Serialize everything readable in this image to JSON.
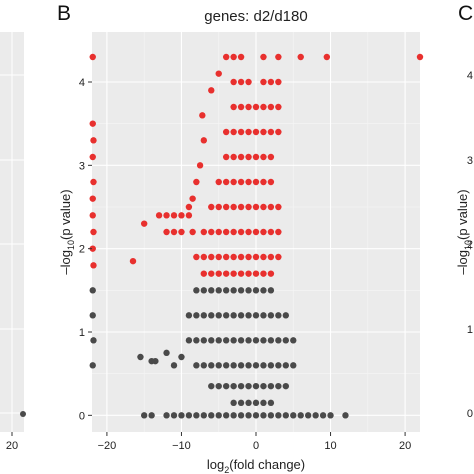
{
  "chart_data": [
    {
      "panel": "A",
      "type": "scatter",
      "x_tick_labels": [
        "20"
      ],
      "y_tick_labels": [],
      "partial": true
    },
    {
      "panel": "B",
      "panel_label": "B",
      "type": "scatter",
      "title": "genes: d2/d180",
      "xlabel_base": "log",
      "xlabel_sub": "2",
      "xlabel_rest": "(fold change)",
      "ylabel_pre": "–log",
      "ylabel_sub": "10",
      "ylabel_rest": "(p value)",
      "xlim": [
        -22,
        22
      ],
      "ylim": [
        -0.2,
        4.6
      ],
      "x_ticks": [
        -20,
        -10,
        0,
        10,
        20
      ],
      "x_tick_labels": [
        "−20",
        "−10",
        "0",
        "10",
        "20"
      ],
      "y_ticks": [
        0,
        1,
        2,
        3,
        4
      ],
      "y_tick_labels": [
        "0",
        "1",
        "2",
        "3",
        "4"
      ],
      "grid": true,
      "background": "#ebebeb",
      "significance_threshold_y": 1.6,
      "colors": {
        "significant": "#e8302e",
        "not_significant": "#4a4a4a"
      },
      "series": [
        {
          "color": "#e8302e",
          "points": [
            [
              -21.9,
              4.3
            ],
            [
              -21.9,
              3.5
            ],
            [
              -21.8,
              3.3
            ],
            [
              -21.9,
              3.1
            ],
            [
              -21.8,
              2.8
            ],
            [
              -21.9,
              2.6
            ],
            [
              -21.9,
              2.4
            ],
            [
              -21.8,
              2.2
            ],
            [
              -21.9,
              2.0
            ],
            [
              -21.8,
              1.8
            ],
            [
              -16.5,
              1.85
            ],
            [
              -15.0,
              2.3
            ],
            [
              -13.0,
              2.4
            ],
            [
              -12.0,
              2.4
            ],
            [
              -11.0,
              2.4
            ],
            [
              -10.0,
              2.4
            ],
            [
              -9.0,
              2.4
            ],
            [
              -12.0,
              2.2
            ],
            [
              -11.0,
              2.2
            ],
            [
              -10.0,
              2.2
            ],
            [
              -8.5,
              2.2
            ],
            [
              -9.0,
              2.5
            ],
            [
              -8.5,
              2.6
            ],
            [
              -8.0,
              2.8
            ],
            [
              -7.5,
              3.0
            ],
            [
              -7.0,
              3.3
            ],
            [
              -7.2,
              3.6
            ],
            [
              -6.0,
              3.9
            ],
            [
              -5.0,
              4.1
            ],
            [
              -4.0,
              4.3
            ],
            [
              -3.0,
              4.3
            ],
            [
              -2.0,
              4.3
            ],
            [
              1.0,
              4.3
            ],
            [
              3.0,
              4.3
            ],
            [
              6.0,
              4.3
            ],
            [
              9.5,
              4.3
            ],
            [
              22.0,
              4.3
            ],
            [
              -3.0,
              4.0
            ],
            [
              -2.0,
              4.0
            ],
            [
              -1.0,
              4.0
            ],
            [
              1.0,
              4.0
            ],
            [
              2.0,
              4.0
            ],
            [
              3.0,
              4.0
            ],
            [
              -3.0,
              3.7
            ],
            [
              -2.0,
              3.7
            ],
            [
              -1.0,
              3.7
            ],
            [
              0.0,
              3.7
            ],
            [
              1.0,
              3.7
            ],
            [
              2.0,
              3.7
            ],
            [
              3.0,
              3.7
            ],
            [
              -4.0,
              3.4
            ],
            [
              -3.0,
              3.4
            ],
            [
              -2.0,
              3.4
            ],
            [
              -1.0,
              3.4
            ],
            [
              0.0,
              3.4
            ],
            [
              1.0,
              3.4
            ],
            [
              2.0,
              3.4
            ],
            [
              3.0,
              3.4
            ],
            [
              -4.0,
              3.1
            ],
            [
              -3.0,
              3.1
            ],
            [
              -2.0,
              3.1
            ],
            [
              -1.0,
              3.1
            ],
            [
              0.0,
              3.1
            ],
            [
              1.0,
              3.1
            ],
            [
              2.0,
              3.1
            ],
            [
              -5.0,
              2.8
            ],
            [
              -4.0,
              2.8
            ],
            [
              -3.0,
              2.8
            ],
            [
              -2.0,
              2.8
            ],
            [
              -1.0,
              2.8
            ],
            [
              0.0,
              2.8
            ],
            [
              1.0,
              2.8
            ],
            [
              2.0,
              2.8
            ],
            [
              -6.0,
              2.5
            ],
            [
              -5.0,
              2.5
            ],
            [
              -4.0,
              2.5
            ],
            [
              -3.0,
              2.5
            ],
            [
              -2.0,
              2.5
            ],
            [
              -1.0,
              2.5
            ],
            [
              0.0,
              2.5
            ],
            [
              1.0,
              2.5
            ],
            [
              2.0,
              2.5
            ],
            [
              3.0,
              2.5
            ],
            [
              -7.0,
              2.2
            ],
            [
              -6.0,
              2.2
            ],
            [
              -5.0,
              2.2
            ],
            [
              -4.0,
              2.2
            ],
            [
              -3.0,
              2.2
            ],
            [
              -2.0,
              2.2
            ],
            [
              -1.0,
              2.2
            ],
            [
              0.0,
              2.2
            ],
            [
              1.0,
              2.2
            ],
            [
              2.0,
              2.2
            ],
            [
              3.0,
              2.2
            ],
            [
              -8.0,
              1.9
            ],
            [
              -7.0,
              1.9
            ],
            [
              -6.0,
              1.9
            ],
            [
              -5.0,
              1.9
            ],
            [
              -4.0,
              1.9
            ],
            [
              -3.0,
              1.9
            ],
            [
              -2.0,
              1.9
            ],
            [
              -1.0,
              1.9
            ],
            [
              0.0,
              1.9
            ],
            [
              1.0,
              1.9
            ],
            [
              2.0,
              1.9
            ],
            [
              3.0,
              1.9
            ],
            [
              -7.0,
              1.7
            ],
            [
              -6.0,
              1.7
            ],
            [
              -5.0,
              1.7
            ],
            [
              -4.0,
              1.7
            ],
            [
              -3.0,
              1.7
            ],
            [
              -2.0,
              1.7
            ],
            [
              -1.0,
              1.7
            ],
            [
              0.0,
              1.7
            ],
            [
              1.0,
              1.7
            ],
            [
              2.0,
              1.7
            ]
          ]
        },
        {
          "color": "#4a4a4a",
          "points": [
            [
              -21.9,
              1.5
            ],
            [
              -21.9,
              1.2
            ],
            [
              -21.8,
              0.9
            ],
            [
              -21.9,
              0.6
            ],
            [
              -15.5,
              0.7
            ],
            [
              -14.0,
              0.65
            ],
            [
              -13.5,
              0.65
            ],
            [
              -12.0,
              0.75
            ],
            [
              -11.0,
              0.6
            ],
            [
              -10.0,
              0.7
            ],
            [
              -8.0,
              1.5
            ],
            [
              -7.0,
              1.5
            ],
            [
              -6.0,
              1.5
            ],
            [
              -5.0,
              1.5
            ],
            [
              -4.0,
              1.5
            ],
            [
              -3.0,
              1.5
            ],
            [
              -2.0,
              1.5
            ],
            [
              -1.0,
              1.5
            ],
            [
              0.0,
              1.5
            ],
            [
              1.0,
              1.5
            ],
            [
              2.0,
              1.5
            ],
            [
              -9.0,
              1.2
            ],
            [
              -8.0,
              1.2
            ],
            [
              -7.0,
              1.2
            ],
            [
              -6.0,
              1.2
            ],
            [
              -5.0,
              1.2
            ],
            [
              -4.0,
              1.2
            ],
            [
              -3.0,
              1.2
            ],
            [
              -2.0,
              1.2
            ],
            [
              -1.0,
              1.2
            ],
            [
              0.0,
              1.2
            ],
            [
              1.0,
              1.2
            ],
            [
              2.0,
              1.2
            ],
            [
              3.0,
              1.2
            ],
            [
              4.0,
              1.2
            ],
            [
              -9.0,
              0.9
            ],
            [
              -8.0,
              0.9
            ],
            [
              -7.0,
              0.9
            ],
            [
              -6.0,
              0.9
            ],
            [
              -5.0,
              0.9
            ],
            [
              -4.0,
              0.9
            ],
            [
              -3.0,
              0.9
            ],
            [
              -2.0,
              0.9
            ],
            [
              -1.0,
              0.9
            ],
            [
              0.0,
              0.9
            ],
            [
              1.0,
              0.9
            ],
            [
              2.0,
              0.9
            ],
            [
              3.0,
              0.9
            ],
            [
              4.0,
              0.9
            ],
            [
              5.0,
              0.9
            ],
            [
              -8.0,
              0.6
            ],
            [
              -7.0,
              0.6
            ],
            [
              -6.0,
              0.6
            ],
            [
              -5.0,
              0.6
            ],
            [
              -4.0,
              0.6
            ],
            [
              -3.0,
              0.6
            ],
            [
              -2.0,
              0.6
            ],
            [
              -1.0,
              0.6
            ],
            [
              0.0,
              0.6
            ],
            [
              1.0,
              0.6
            ],
            [
              2.0,
              0.6
            ],
            [
              3.0,
              0.6
            ],
            [
              4.0,
              0.6
            ],
            [
              5.0,
              0.6
            ],
            [
              -6.0,
              0.35
            ],
            [
              -5.0,
              0.35
            ],
            [
              -4.0,
              0.35
            ],
            [
              -3.0,
              0.35
            ],
            [
              -2.0,
              0.35
            ],
            [
              -1.0,
              0.35
            ],
            [
              0.0,
              0.35
            ],
            [
              1.0,
              0.35
            ],
            [
              2.0,
              0.35
            ],
            [
              3.0,
              0.35
            ],
            [
              4.0,
              0.35
            ],
            [
              -3.0,
              0.15
            ],
            [
              -2.0,
              0.15
            ],
            [
              -1.0,
              0.15
            ],
            [
              0.0,
              0.15
            ],
            [
              1.0,
              0.15
            ],
            [
              2.0,
              0.15
            ],
            [
              -15.0,
              0.0
            ],
            [
              -14.0,
              0.0
            ],
            [
              -12.0,
              0.0
            ],
            [
              -11.0,
              0.0
            ],
            [
              -10.0,
              0.0
            ],
            [
              -9.0,
              0.0
            ],
            [
              -8.0,
              0.0
            ],
            [
              -7.0,
              0.0
            ],
            [
              -6.0,
              0.0
            ],
            [
              -5.0,
              0.0
            ],
            [
              -4.0,
              0.0
            ],
            [
              -3.0,
              0.0
            ],
            [
              -2.0,
              0.0
            ],
            [
              -1.0,
              0.0
            ],
            [
              0.0,
              0.0
            ],
            [
              1.0,
              0.0
            ],
            [
              2.0,
              0.0
            ],
            [
              3.0,
              0.0
            ],
            [
              4.0,
              0.0
            ],
            [
              5.0,
              0.0
            ],
            [
              6.0,
              0.0
            ],
            [
              7.0,
              0.0
            ],
            [
              8.0,
              0.0
            ],
            [
              9.0,
              0.0
            ],
            [
              10.0,
              0.0
            ],
            [
              12.0,
              0.0
            ]
          ]
        }
      ]
    },
    {
      "panel": "C",
      "panel_label": "C",
      "type": "scatter",
      "ylabel_pre": "–log",
      "ylabel_sub": "10",
      "ylabel_rest": "(p value)",
      "y_tick_labels": [
        "4",
        "3",
        "2",
        "1",
        "0"
      ],
      "partial": true
    }
  ]
}
